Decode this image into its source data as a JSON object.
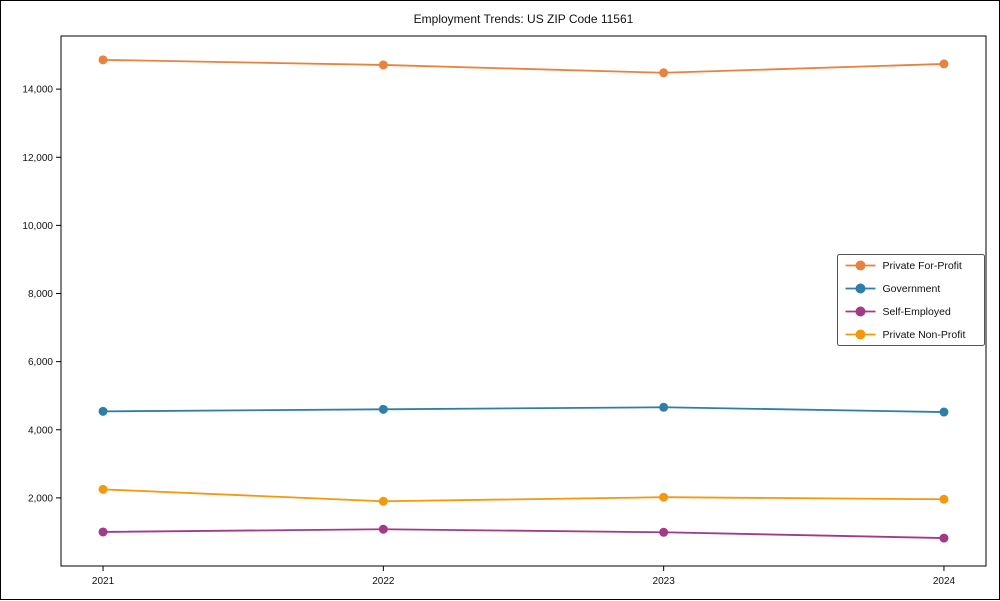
{
  "chart_data": {
    "type": "line",
    "title": "Employment Trends: US ZIP Code 11561",
    "categories": [
      "2021",
      "2022",
      "2023",
      "2024"
    ],
    "series": [
      {
        "name": "Private For-Profit",
        "color": "#e8823e",
        "values": [
          14860,
          14710,
          14480,
          14740
        ]
      },
      {
        "name": "Government",
        "color": "#2d7fa8",
        "values": [
          4540,
          4600,
          4660,
          4520
        ]
      },
      {
        "name": "Self-Employed",
        "color": "#a23a88",
        "values": [
          1000,
          1080,
          990,
          820
        ]
      },
      {
        "name": "Private Non-Profit",
        "color": "#f2990d",
        "values": [
          2250,
          1900,
          2020,
          1960
        ]
      }
    ],
    "xlabel": "",
    "ylabel": "",
    "ylim": [
      0,
      15560
    ],
    "yticks": [
      2000,
      4000,
      6000,
      8000,
      10000,
      12000,
      14000
    ],
    "ytick_labels": [
      "2,000",
      "4,000",
      "6,000",
      "8,000",
      "10,000",
      "12,000",
      "14,000"
    ],
    "grid": false,
    "legend_position": "right-center",
    "marker": "circle",
    "axis_color": "#000000",
    "background_color": "#ffffff"
  }
}
